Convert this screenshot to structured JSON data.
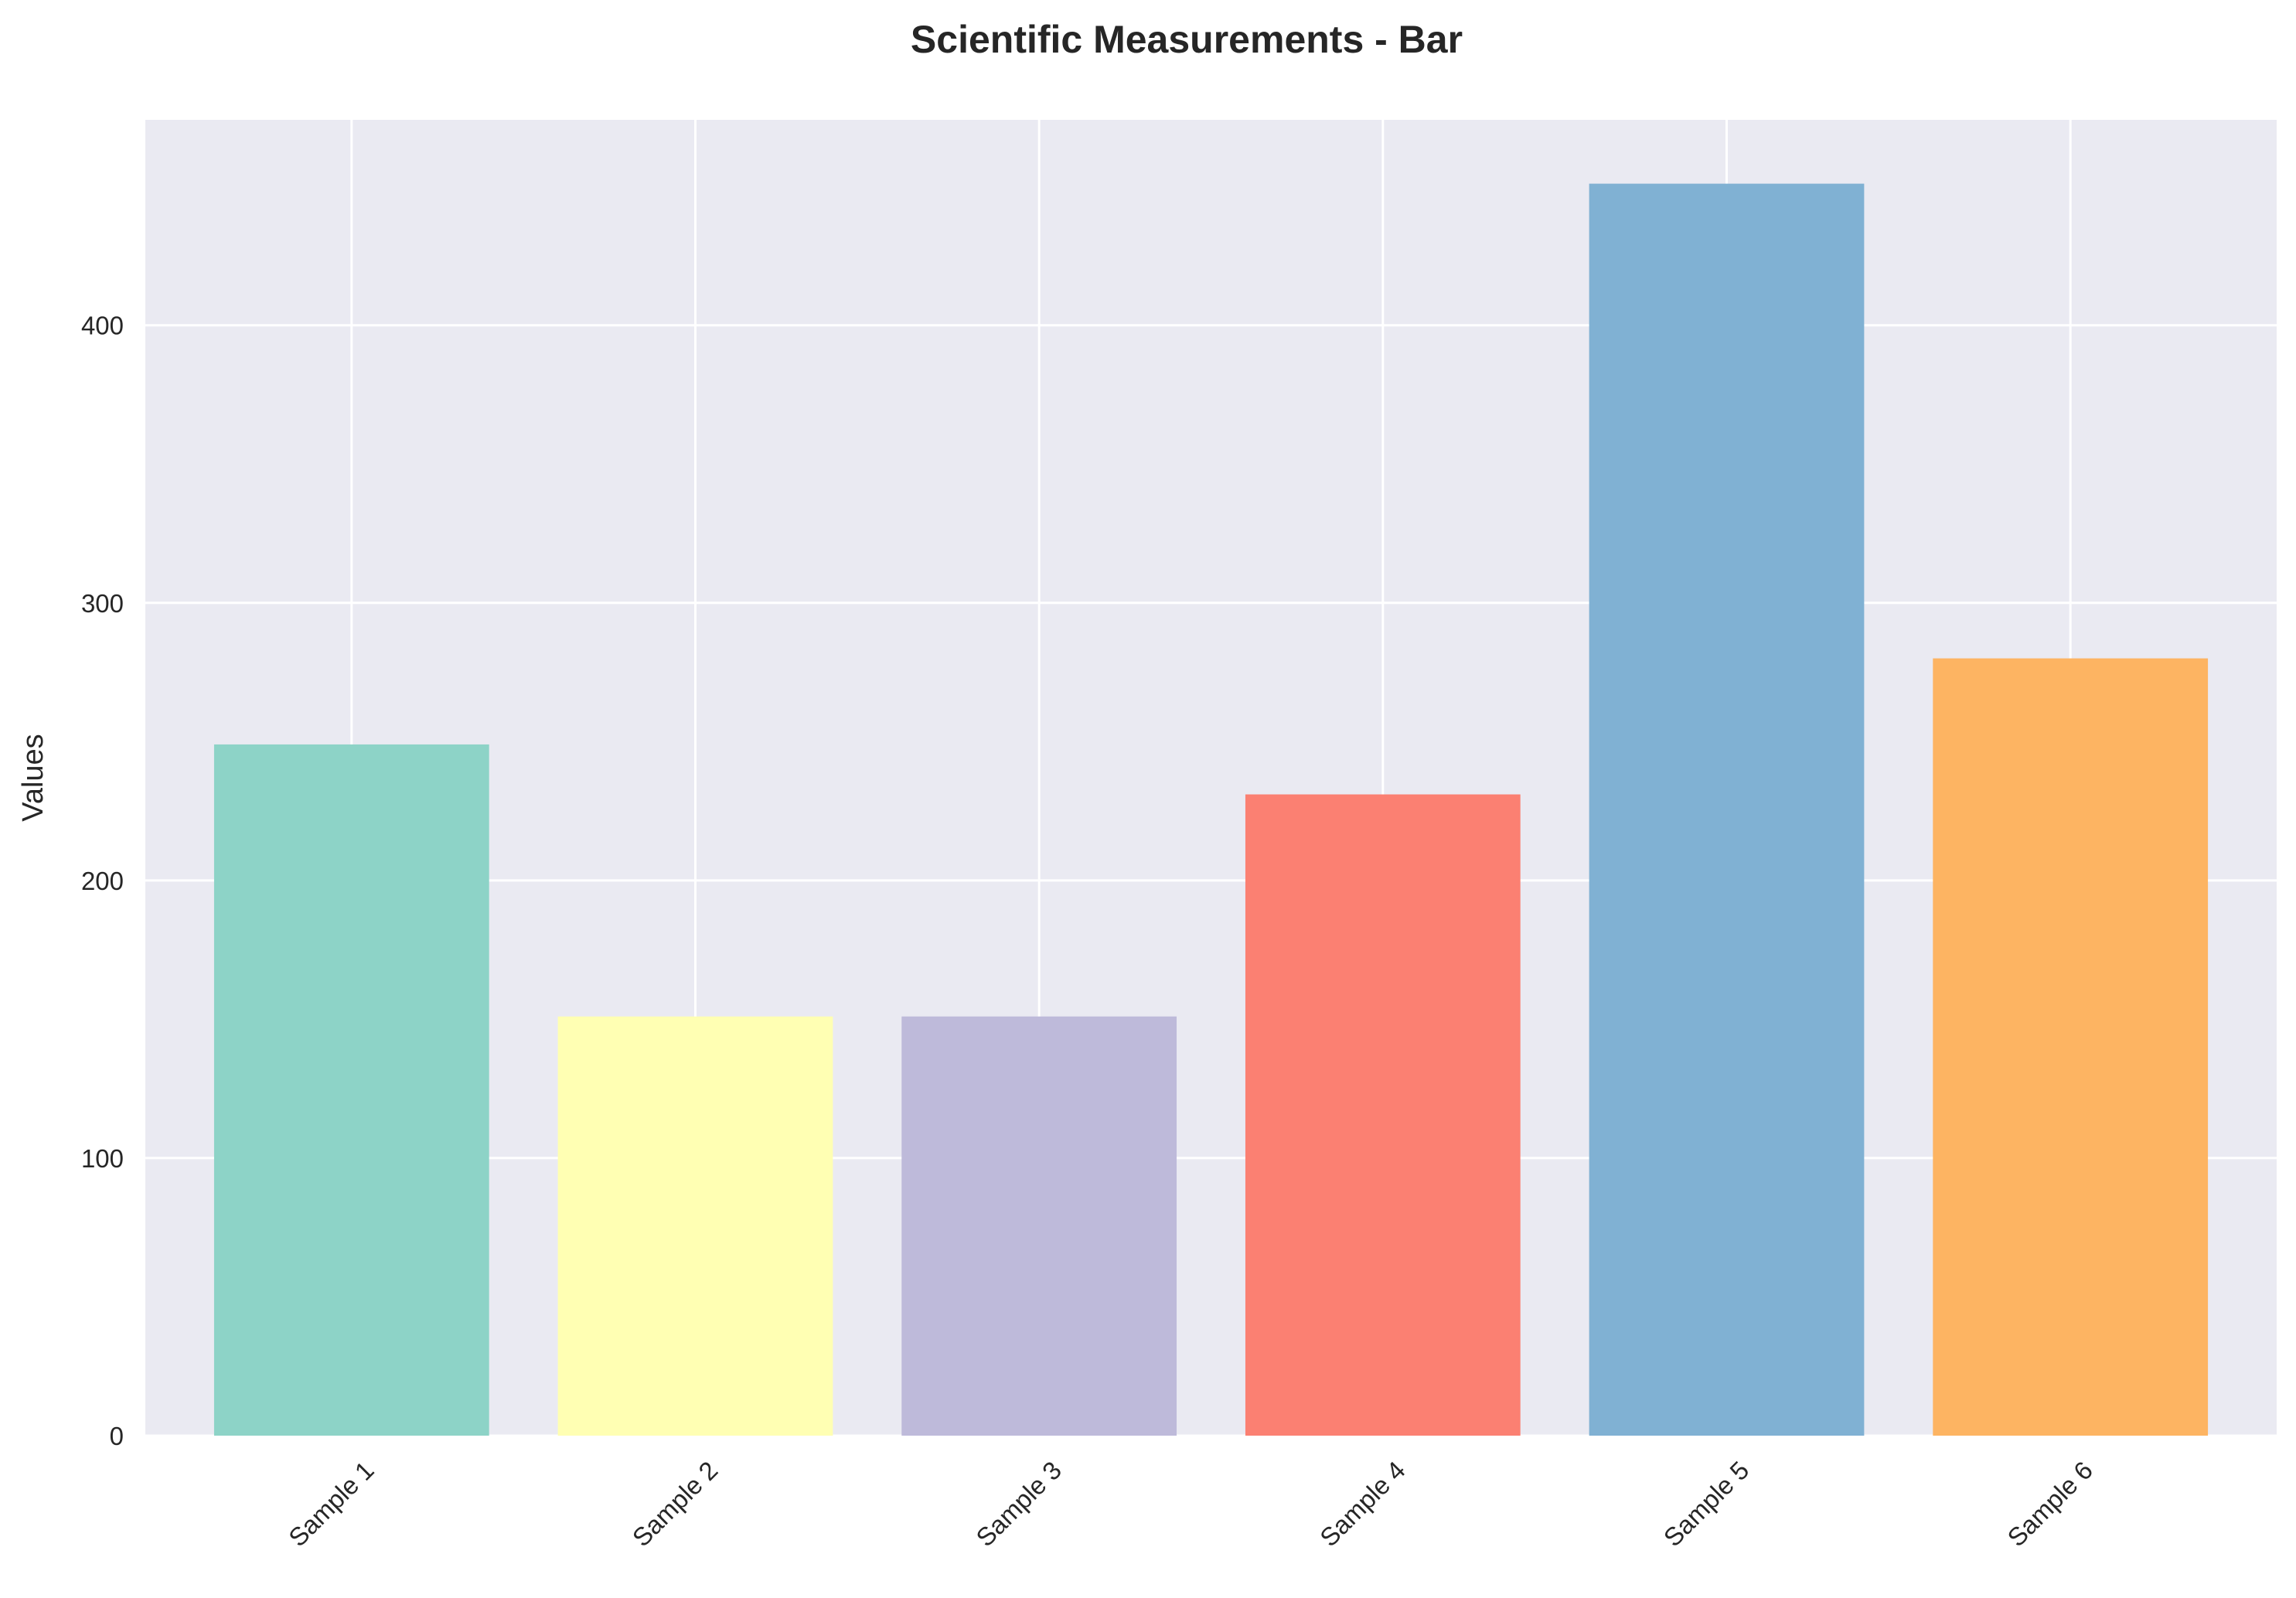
{
  "chart_data": {
    "type": "bar",
    "title": "Scientific Measurements - Bar",
    "xlabel": "",
    "ylabel": "Values",
    "categories": [
      "Sample 1",
      "Sample 2",
      "Sample 3",
      "Sample 4",
      "Sample 5",
      "Sample 6"
    ],
    "values": [
      249,
      151,
      151,
      231,
      451,
      280
    ],
    "colors": [
      "#8dd3c7",
      "#ffffb3",
      "#bebada",
      "#fb8072",
      "#80b1d3",
      "#fdb462"
    ],
    "ylim": [
      0,
      474
    ],
    "yticks": [
      0,
      100,
      200,
      300,
      400
    ],
    "grid": true,
    "background_color": "#eaeaf2",
    "grid_color": "#ffffff",
    "xtick_rotation_deg": 45
  }
}
